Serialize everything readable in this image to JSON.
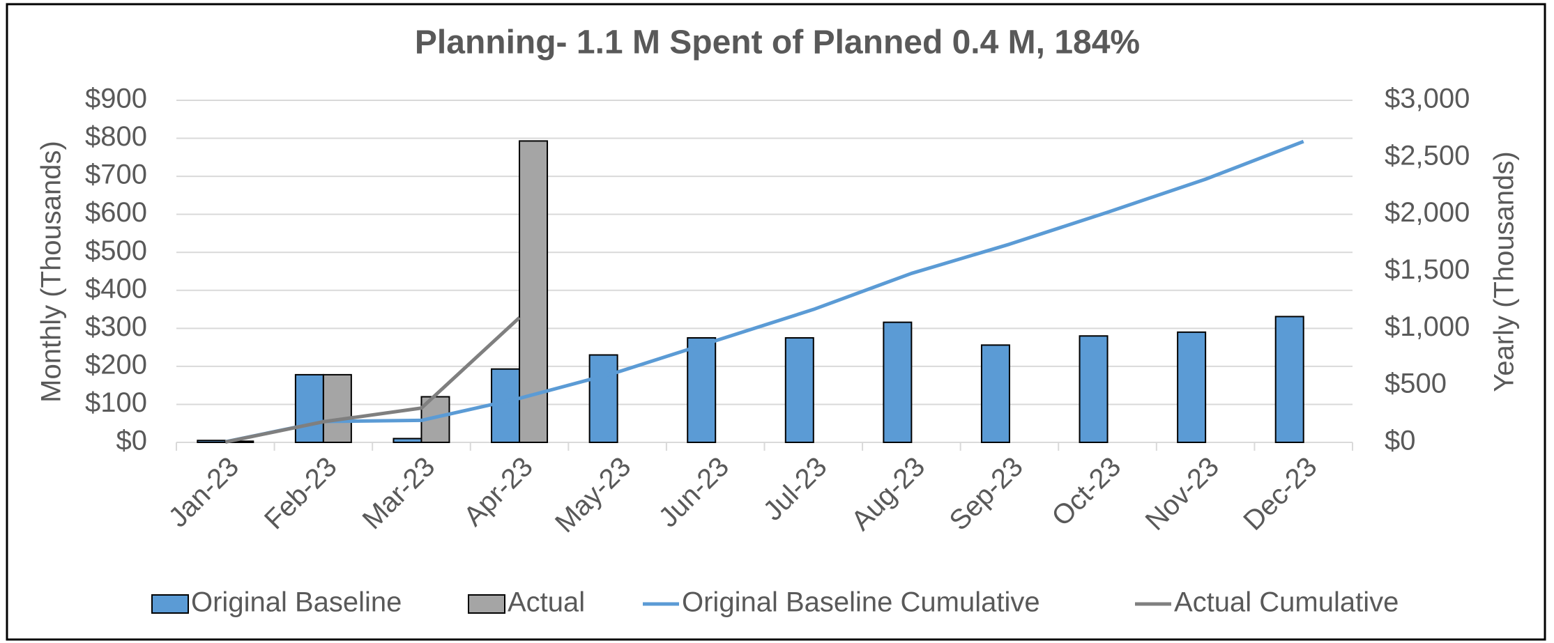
{
  "chart_data": {
    "type": "bar",
    "title": "Planning- 1.1 M Spent of Planned 0.4 M, 184%",
    "ylabel": "Monthly (Thousands)",
    "y2label": "Yearly (Thousands)",
    "categories": [
      "Jan-23",
      "Feb-23",
      "Mar-23",
      "Apr-23",
      "May-23",
      "Jun-23",
      "Jul-23",
      "Aug-23",
      "Sep-23",
      "Oct-23",
      "Nov-23",
      "Dec-23"
    ],
    "series": [
      {
        "name": "Original Baseline",
        "type": "bar",
        "color": "#5b9bd5",
        "values": [
          5,
          178,
          10,
          193,
          230,
          275,
          275,
          316,
          256,
          280,
          290,
          331
        ]
      },
      {
        "name": "Actual",
        "type": "bar",
        "color": "#a5a5a5",
        "values": [
          3,
          178,
          120,
          793,
          null,
          null,
          null,
          null,
          null,
          null,
          null,
          null
        ]
      },
      {
        "name": "Original Baseline Cumulative",
        "type": "line",
        "axis": "y2",
        "color": "#5b9bd5",
        "values": [
          5,
          183,
          193,
          386,
          616,
          891,
          1166,
          1482,
          1738,
          2018,
          2308,
          2639
        ]
      },
      {
        "name": "Actual Cumulative",
        "type": "line",
        "axis": "y2",
        "color": "#7f7f7f",
        "values": [
          3,
          181,
          301,
          1094,
          null,
          null,
          null,
          null,
          null,
          null,
          null,
          null
        ]
      }
    ],
    "ylim": [
      0,
      900
    ],
    "yticks": [
      {
        "value": 0,
        "label": "$0"
      },
      {
        "value": 100,
        "label": "$100"
      },
      {
        "value": 200,
        "label": "$200"
      },
      {
        "value": 300,
        "label": "$300"
      },
      {
        "value": 400,
        "label": "$400"
      },
      {
        "value": 500,
        "label": "$500"
      },
      {
        "value": 600,
        "label": "$600"
      },
      {
        "value": 700,
        "label": "$700"
      },
      {
        "value": 800,
        "label": "$800"
      },
      {
        "value": 900,
        "label": "$900"
      }
    ],
    "y2lim": [
      0,
      3000
    ],
    "y2ticks": [
      {
        "value": 0,
        "label": "$0"
      },
      {
        "value": 500,
        "label": "$500"
      },
      {
        "value": 1000,
        "label": "$1,000"
      },
      {
        "value": 1500,
        "label": "$1,500"
      },
      {
        "value": 2000,
        "label": "$2,000"
      },
      {
        "value": 2500,
        "label": "$2,500"
      },
      {
        "value": 3000,
        "label": "$3,000"
      }
    ],
    "grid": true,
    "legend": "bottom"
  }
}
